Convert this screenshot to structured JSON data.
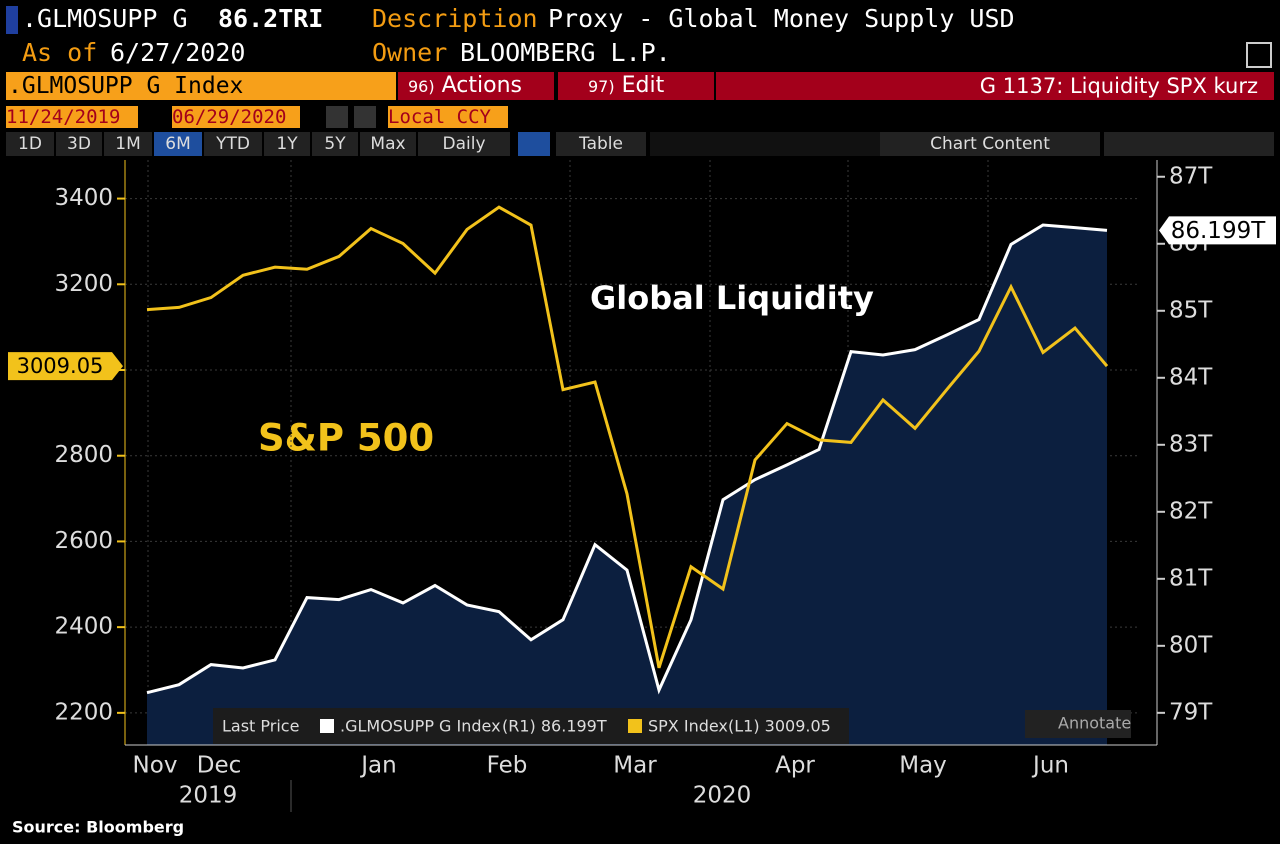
{
  "header": {
    "ticker": ".GLMOSUPP G",
    "value": "86.2TRI",
    "description_label": "Description",
    "description": "Proxy - Global Money Supply USD",
    "as_of_label": "As of",
    "as_of": "6/27/2020",
    "owner_label": "Owner",
    "owner": "BLOOMBERG L.P."
  },
  "toolbar": {
    "security": ".GLMOSUPP G Index",
    "actions_num": "96)",
    "actions": "Actions",
    "edit_num": "97)",
    "edit": "Edit",
    "page_title": "G 1137: Liquidity SPX kurz",
    "start_date": "11/24/2019",
    "end_date": "06/29/2020",
    "currency": "Local CCY",
    "periods": [
      "1D",
      "3D",
      "1M",
      "6M",
      "YTD",
      "1Y",
      "5Y",
      "Max"
    ],
    "frequency": "Daily",
    "table": "Table",
    "chart_content": "Chart Content"
  },
  "chart_data": {
    "type": "line",
    "annotations": [
      "Global Liquidity",
      "S&P 500"
    ],
    "categories": [
      "Nov",
      null,
      "Dec",
      null,
      null,
      null,
      null,
      "Jan",
      null,
      null,
      null,
      "Feb",
      null,
      null,
      null,
      "Mar",
      null,
      null,
      null,
      null,
      "Apr",
      null,
      null,
      null,
      "May",
      null,
      null,
      null,
      "Jun",
      null,
      null
    ],
    "years": [
      "2019",
      "2020"
    ],
    "series": [
      {
        "name": "SPX Index",
        "legend_detail": "(L1) 3009.05",
        "color": "#f2c21b",
        "axis": "y",
        "values": [
          3141,
          3146,
          3169,
          3221,
          3240,
          3235,
          3265,
          3330,
          3295,
          3226,
          3328,
          3380,
          3338,
          2954,
          2972,
          2711,
          2305,
          2541,
          2489,
          2790,
          2875,
          2837,
          2831,
          2930,
          2864,
          2955,
          3044,
          3194,
          3041,
          3098,
          3009.05
        ],
        "value_labels": [
          null,
          null,
          null,
          null,
          null,
          null,
          null,
          null,
          null,
          null,
          null,
          null,
          null,
          null,
          null,
          null,
          null,
          null,
          null,
          null,
          null,
          null,
          null,
          null,
          null,
          null,
          null,
          null,
          null,
          null,
          "3009.05"
        ]
      },
      {
        "name": ".GLMOSUPP G Index",
        "legend_detail": "(R1) 86.199T",
        "color": "#ffffff",
        "axis": "y2",
        "values": [
          79.3,
          79.42,
          79.72,
          79.67,
          79.79,
          80.72,
          80.69,
          80.84,
          80.64,
          80.9,
          80.61,
          80.51,
          80.09,
          80.39,
          81.51,
          81.13,
          79.34,
          80.39,
          82.18,
          82.48,
          82.7,
          82.93,
          84.39,
          84.34,
          84.42,
          84.64,
          84.87,
          85.99,
          86.28,
          86.24,
          86.199
        ],
        "value_labels": [
          null,
          null,
          null,
          null,
          null,
          null,
          null,
          null,
          null,
          null,
          null,
          null,
          null,
          null,
          null,
          null,
          null,
          null,
          null,
          null,
          null,
          null,
          null,
          null,
          null,
          null,
          null,
          null,
          null,
          null,
          "86.199T"
        ]
      }
    ],
    "ylim": [
      2125,
      3490
    ],
    "yticks": [
      2200,
      2400,
      2600,
      2800,
      3000,
      3200,
      3400
    ],
    "y2lim": [
      78.52,
      87.25
    ],
    "y2ticks": [
      {
        "value": 79,
        "label": "79T"
      },
      {
        "value": 80,
        "label": "80T"
      },
      {
        "value": 81,
        "label": "81T"
      },
      {
        "value": 82,
        "label": "82T"
      },
      {
        "value": 83,
        "label": "83T"
      },
      {
        "value": 84,
        "label": "84T"
      },
      {
        "value": 85,
        "label": "85T"
      },
      {
        "value": 86,
        "label": "86T"
      },
      {
        "value": 87,
        "label": "87T"
      }
    ],
    "grid": true,
    "area_color": "#0c1f3f",
    "legend_title": "Last Price",
    "annotate": "Annotate"
  },
  "source": "Source: Bloomberg"
}
